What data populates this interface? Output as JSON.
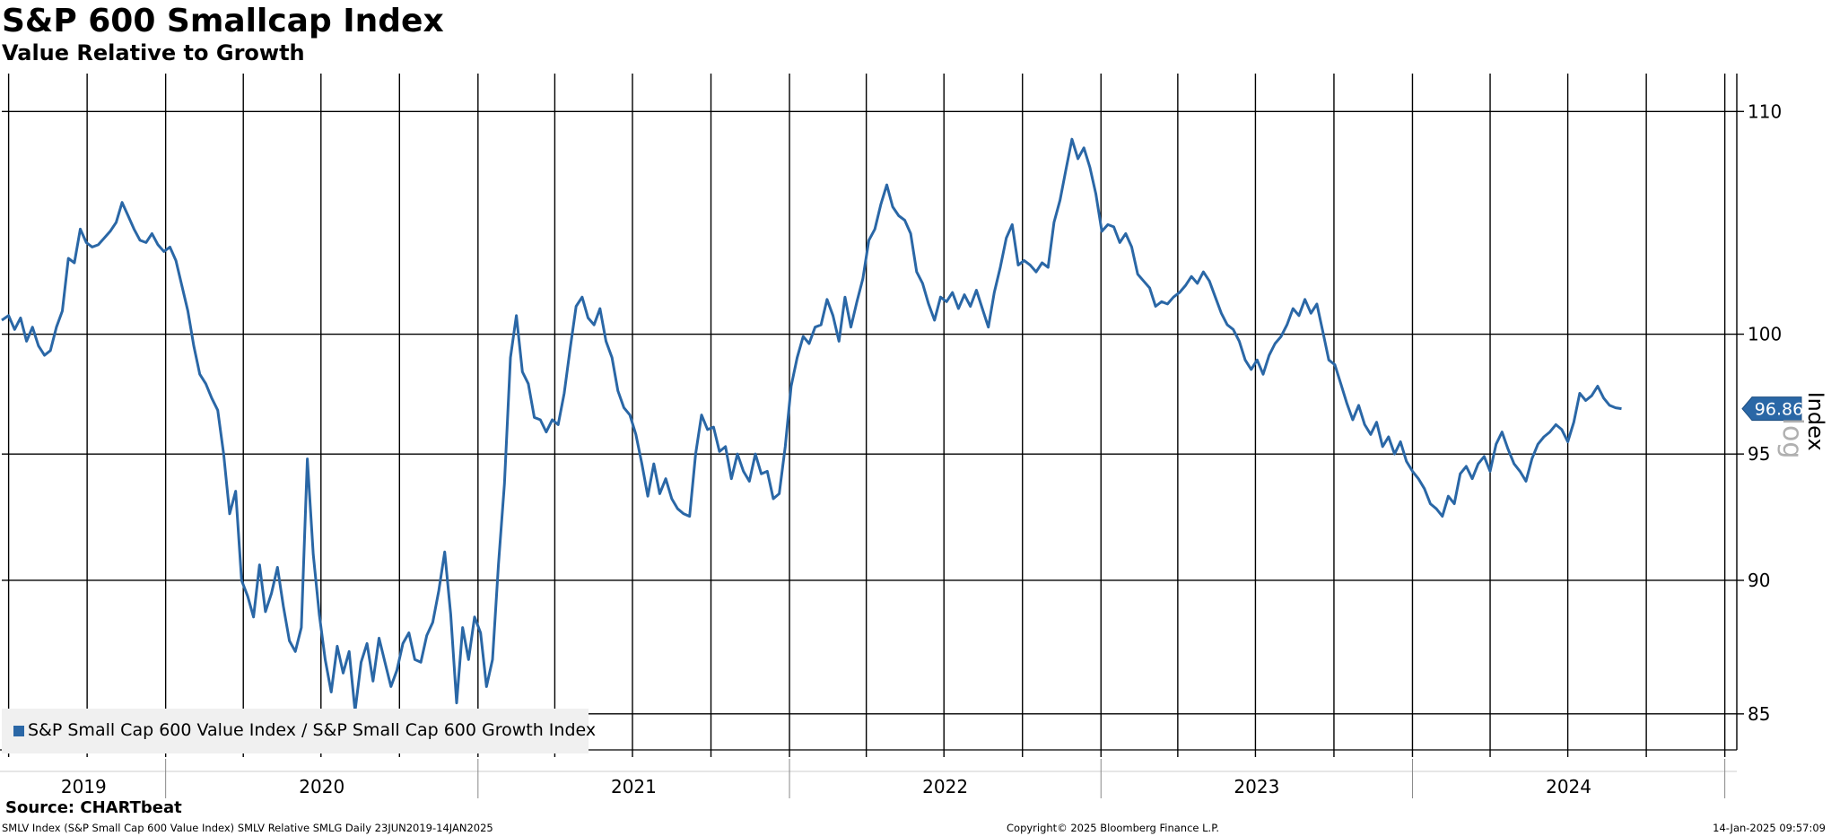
{
  "header": {
    "title": "S&P 600 Smallcap Index",
    "subtitle": "Value Relative to Growth"
  },
  "footer": {
    "source": "Source: CHARTbeat",
    "description": "SMLV Index (S&P Small Cap 600 Value Index) SMLV Relative SMLG  Daily 23JUN2019-14JAN2025",
    "copyright": "Copyright© 2025 Bloomberg Finance L.P.",
    "timestamp": "14-Jan-2025 09:57:09"
  },
  "colors": {
    "series": "#2a67a6",
    "grid": "#000000",
    "legend_background": "#f0f0f0"
  },
  "chart_data": {
    "type": "line",
    "title": "S&P 600 Smallcap Index",
    "subtitle": "Value Relative to Growth",
    "ylabel": "Index",
    "log_scale": true,
    "log_watermark": "log",
    "ylim": [
      83.7,
      111.8
    ],
    "yticks": [
      85,
      90,
      95,
      100,
      110
    ],
    "xlim": [
      "2019-06-23",
      "2025-01-14"
    ],
    "x_year_labels": [
      "2019",
      "2020",
      "2021",
      "2022",
      "2023",
      "2024"
    ],
    "grid": true,
    "legend_position": "bottom-left",
    "last_value_label": "96.86",
    "series": [
      {
        "name": "S&P Small Cap 600 Value Index / S&P Small Cap 600 Growth Index",
        "points": [
          [
            "2019-06-23",
            100.6
          ],
          [
            "2019-07-01",
            100.8
          ],
          [
            "2019-07-08",
            100.2
          ],
          [
            "2019-07-15",
            100.7
          ],
          [
            "2019-07-22",
            99.7
          ],
          [
            "2019-07-29",
            100.3
          ],
          [
            "2019-08-05",
            99.5
          ],
          [
            "2019-08-12",
            99.1
          ],
          [
            "2019-08-19",
            99.3
          ],
          [
            "2019-08-26",
            100.3
          ],
          [
            "2019-09-02",
            101.0
          ],
          [
            "2019-09-09",
            103.3
          ],
          [
            "2019-09-16",
            103.1
          ],
          [
            "2019-09-23",
            104.6
          ],
          [
            "2019-09-30",
            104.0
          ],
          [
            "2019-10-07",
            103.8
          ],
          [
            "2019-10-14",
            103.9
          ],
          [
            "2019-10-21",
            104.2
          ],
          [
            "2019-10-28",
            104.5
          ],
          [
            "2019-11-04",
            104.9
          ],
          [
            "2019-11-11",
            105.8
          ],
          [
            "2019-11-18",
            105.2
          ],
          [
            "2019-11-25",
            104.6
          ],
          [
            "2019-12-02",
            104.1
          ],
          [
            "2019-12-09",
            104.0
          ],
          [
            "2019-12-16",
            104.4
          ],
          [
            "2019-12-23",
            103.9
          ],
          [
            "2019-12-30",
            103.6
          ],
          [
            "2020-01-06",
            103.8
          ],
          [
            "2020-01-13",
            103.2
          ],
          [
            "2020-01-20",
            102.1
          ],
          [
            "2020-01-27",
            101.0
          ],
          [
            "2020-02-03",
            99.5
          ],
          [
            "2020-02-10",
            98.3
          ],
          [
            "2020-02-17",
            97.9
          ],
          [
            "2020-02-24",
            97.3
          ],
          [
            "2020-03-02",
            96.8
          ],
          [
            "2020-03-09",
            95.0
          ],
          [
            "2020-03-16",
            92.6
          ],
          [
            "2020-03-23",
            93.5
          ],
          [
            "2020-03-30",
            90.0
          ],
          [
            "2020-04-06",
            89.4
          ],
          [
            "2020-04-13",
            88.6
          ],
          [
            "2020-04-20",
            90.6
          ],
          [
            "2020-04-27",
            88.8
          ],
          [
            "2020-05-04",
            89.5
          ],
          [
            "2020-05-11",
            90.5
          ],
          [
            "2020-05-18",
            89.0
          ],
          [
            "2020-05-25",
            87.7
          ],
          [
            "2020-06-01",
            87.3
          ],
          [
            "2020-06-08",
            88.2
          ],
          [
            "2020-06-15",
            94.8
          ],
          [
            "2020-06-22",
            91.0
          ],
          [
            "2020-06-29",
            88.7
          ],
          [
            "2020-07-06",
            87.0
          ],
          [
            "2020-07-13",
            85.8
          ],
          [
            "2020-07-20",
            87.5
          ],
          [
            "2020-07-27",
            86.5
          ],
          [
            "2020-08-03",
            87.3
          ],
          [
            "2020-08-10",
            85.1
          ],
          [
            "2020-08-17",
            86.9
          ],
          [
            "2020-08-24",
            87.6
          ],
          [
            "2020-08-31",
            86.2
          ],
          [
            "2020-09-07",
            87.8
          ],
          [
            "2020-09-14",
            86.9
          ],
          [
            "2020-09-21",
            86.0
          ],
          [
            "2020-09-28",
            86.6
          ],
          [
            "2020-10-05",
            87.6
          ],
          [
            "2020-10-12",
            88.0
          ],
          [
            "2020-10-19",
            87.0
          ],
          [
            "2020-10-26",
            86.9
          ],
          [
            "2020-11-02",
            87.9
          ],
          [
            "2020-11-09",
            88.4
          ],
          [
            "2020-11-16",
            89.6
          ],
          [
            "2020-11-23",
            91.1
          ],
          [
            "2020-11-30",
            88.7
          ],
          [
            "2020-12-07",
            85.4
          ],
          [
            "2020-12-14",
            88.2
          ],
          [
            "2020-12-21",
            87.0
          ],
          [
            "2020-12-28",
            88.6
          ],
          [
            "2021-01-04",
            88.0
          ],
          [
            "2021-01-11",
            86.0
          ],
          [
            "2021-01-18",
            87.0
          ],
          [
            "2021-01-25",
            90.6
          ],
          [
            "2021-02-01",
            93.8
          ],
          [
            "2021-02-08",
            99.0
          ],
          [
            "2021-02-15",
            100.8
          ],
          [
            "2021-02-22",
            98.4
          ],
          [
            "2021-03-01",
            97.9
          ],
          [
            "2021-03-08",
            96.5
          ],
          [
            "2021-03-15",
            96.4
          ],
          [
            "2021-03-22",
            95.9
          ],
          [
            "2021-03-29",
            96.4
          ],
          [
            "2021-04-05",
            96.2
          ],
          [
            "2021-04-12",
            97.5
          ],
          [
            "2021-04-19",
            99.4
          ],
          [
            "2021-04-26",
            101.2
          ],
          [
            "2021-05-03",
            101.6
          ],
          [
            "2021-05-10",
            100.7
          ],
          [
            "2021-05-17",
            100.4
          ],
          [
            "2021-05-24",
            101.1
          ],
          [
            "2021-05-31",
            99.7
          ],
          [
            "2021-06-07",
            99.0
          ],
          [
            "2021-06-14",
            97.6
          ],
          [
            "2021-06-21",
            96.9
          ],
          [
            "2021-06-28",
            96.6
          ],
          [
            "2021-07-05",
            95.8
          ],
          [
            "2021-07-12",
            94.6
          ],
          [
            "2021-07-19",
            93.3
          ],
          [
            "2021-07-26",
            94.6
          ],
          [
            "2021-08-02",
            93.4
          ],
          [
            "2021-08-09",
            94.0
          ],
          [
            "2021-08-16",
            93.2
          ],
          [
            "2021-08-23",
            92.8
          ],
          [
            "2021-08-30",
            92.6
          ],
          [
            "2021-09-06",
            92.5
          ],
          [
            "2021-09-13",
            95.0
          ],
          [
            "2021-09-20",
            96.6
          ],
          [
            "2021-09-27",
            96.0
          ],
          [
            "2021-10-04",
            96.1
          ],
          [
            "2021-10-11",
            95.1
          ],
          [
            "2021-10-18",
            95.3
          ],
          [
            "2021-10-25",
            94.0
          ],
          [
            "2021-11-01",
            95.0
          ],
          [
            "2021-11-08",
            94.3
          ],
          [
            "2021-11-15",
            93.9
          ],
          [
            "2021-11-22",
            95.0
          ],
          [
            "2021-11-29",
            94.2
          ],
          [
            "2021-12-06",
            94.3
          ],
          [
            "2021-12-13",
            93.2
          ],
          [
            "2021-12-20",
            93.4
          ],
          [
            "2021-12-27",
            95.3
          ],
          [
            "2022-01-03",
            97.8
          ],
          [
            "2022-01-10",
            99.0
          ],
          [
            "2022-01-17",
            99.9
          ],
          [
            "2022-01-24",
            99.6
          ],
          [
            "2022-01-31",
            100.3
          ],
          [
            "2022-02-07",
            100.4
          ],
          [
            "2022-02-14",
            101.5
          ],
          [
            "2022-02-21",
            100.8
          ],
          [
            "2022-02-28",
            99.7
          ],
          [
            "2022-03-07",
            101.6
          ],
          [
            "2022-03-14",
            100.3
          ],
          [
            "2022-03-21",
            101.4
          ],
          [
            "2022-03-28",
            102.4
          ],
          [
            "2022-04-04",
            104.1
          ],
          [
            "2022-04-11",
            104.6
          ],
          [
            "2022-04-18",
            105.7
          ],
          [
            "2022-04-25",
            106.6
          ],
          [
            "2022-05-02",
            105.6
          ],
          [
            "2022-05-09",
            105.2
          ],
          [
            "2022-05-16",
            105.0
          ],
          [
            "2022-05-23",
            104.4
          ],
          [
            "2022-05-30",
            102.7
          ],
          [
            "2022-06-06",
            102.2
          ],
          [
            "2022-06-13",
            101.3
          ],
          [
            "2022-06-20",
            100.6
          ],
          [
            "2022-06-27",
            101.6
          ],
          [
            "2022-07-04",
            101.4
          ],
          [
            "2022-07-11",
            101.8
          ],
          [
            "2022-07-18",
            101.1
          ],
          [
            "2022-07-25",
            101.7
          ],
          [
            "2022-08-01",
            101.2
          ],
          [
            "2022-08-08",
            101.9
          ],
          [
            "2022-08-15",
            101.1
          ],
          [
            "2022-08-22",
            100.3
          ],
          [
            "2022-08-29",
            101.8
          ],
          [
            "2022-09-05",
            102.9
          ],
          [
            "2022-09-12",
            104.2
          ],
          [
            "2022-09-19",
            104.8
          ],
          [
            "2022-09-26",
            103.0
          ],
          [
            "2022-10-03",
            103.2
          ],
          [
            "2022-10-10",
            103.0
          ],
          [
            "2022-10-17",
            102.7
          ],
          [
            "2022-10-24",
            103.1
          ],
          [
            "2022-10-31",
            102.9
          ],
          [
            "2022-11-07",
            104.9
          ],
          [
            "2022-11-14",
            105.9
          ],
          [
            "2022-11-21",
            107.3
          ],
          [
            "2022-11-28",
            108.7
          ],
          [
            "2022-12-05",
            107.8
          ],
          [
            "2022-12-12",
            108.3
          ],
          [
            "2022-12-19",
            107.4
          ],
          [
            "2022-12-26",
            106.2
          ],
          [
            "2023-01-02",
            104.5
          ],
          [
            "2023-01-09",
            104.8
          ],
          [
            "2023-01-16",
            104.7
          ],
          [
            "2023-01-23",
            104.0
          ],
          [
            "2023-01-30",
            104.4
          ],
          [
            "2023-02-06",
            103.8
          ],
          [
            "2023-02-13",
            102.6
          ],
          [
            "2023-02-20",
            102.3
          ],
          [
            "2023-02-27",
            102.0
          ],
          [
            "2023-03-06",
            101.2
          ],
          [
            "2023-03-13",
            101.4
          ],
          [
            "2023-03-20",
            101.3
          ],
          [
            "2023-03-27",
            101.6
          ],
          [
            "2023-04-03",
            101.8
          ],
          [
            "2023-04-10",
            102.1
          ],
          [
            "2023-04-17",
            102.5
          ],
          [
            "2023-04-24",
            102.2
          ],
          [
            "2023-05-01",
            102.7
          ],
          [
            "2023-05-08",
            102.3
          ],
          [
            "2023-05-15",
            101.6
          ],
          [
            "2023-05-22",
            100.9
          ],
          [
            "2023-05-29",
            100.4
          ],
          [
            "2023-06-05",
            100.2
          ],
          [
            "2023-06-12",
            99.7
          ],
          [
            "2023-06-19",
            98.9
          ],
          [
            "2023-06-26",
            98.5
          ],
          [
            "2023-07-03",
            98.9
          ],
          [
            "2023-07-10",
            98.3
          ],
          [
            "2023-07-17",
            99.1
          ],
          [
            "2023-07-24",
            99.6
          ],
          [
            "2023-07-31",
            99.9
          ],
          [
            "2023-08-07",
            100.4
          ],
          [
            "2023-08-14",
            101.1
          ],
          [
            "2023-08-21",
            100.8
          ],
          [
            "2023-08-28",
            101.5
          ],
          [
            "2023-09-04",
            100.9
          ],
          [
            "2023-09-11",
            101.3
          ],
          [
            "2023-09-18",
            100.1
          ],
          [
            "2023-09-25",
            98.9
          ],
          [
            "2023-10-02",
            98.7
          ],
          [
            "2023-10-09",
            97.9
          ],
          [
            "2023-10-16",
            97.1
          ],
          [
            "2023-10-23",
            96.4
          ],
          [
            "2023-10-30",
            97.0
          ],
          [
            "2023-11-06",
            96.2
          ],
          [
            "2023-11-13",
            95.8
          ],
          [
            "2023-11-20",
            96.3
          ],
          [
            "2023-11-27",
            95.3
          ],
          [
            "2023-12-04",
            95.7
          ],
          [
            "2023-12-11",
            95.0
          ],
          [
            "2023-12-18",
            95.5
          ],
          [
            "2023-12-25",
            94.7
          ],
          [
            "2024-01-01",
            94.3
          ],
          [
            "2024-01-08",
            94.0
          ],
          [
            "2024-01-15",
            93.6
          ],
          [
            "2024-01-22",
            93.0
          ],
          [
            "2024-01-29",
            92.8
          ],
          [
            "2024-02-05",
            92.5
          ],
          [
            "2024-02-12",
            93.3
          ],
          [
            "2024-02-19",
            93.0
          ],
          [
            "2024-02-26",
            94.2
          ],
          [
            "2024-03-04",
            94.5
          ],
          [
            "2024-03-11",
            94.0
          ],
          [
            "2024-03-18",
            94.6
          ],
          [
            "2024-03-25",
            94.9
          ],
          [
            "2024-04-01",
            94.3
          ],
          [
            "2024-04-08",
            95.4
          ],
          [
            "2024-04-15",
            95.9
          ],
          [
            "2024-04-22",
            95.2
          ],
          [
            "2024-04-29",
            94.6
          ],
          [
            "2024-05-06",
            94.3
          ],
          [
            "2024-05-13",
            93.9
          ],
          [
            "2024-05-20",
            94.8
          ],
          [
            "2024-05-27",
            95.4
          ],
          [
            "2024-06-03",
            95.7
          ],
          [
            "2024-06-10",
            95.9
          ],
          [
            "2024-06-17",
            96.2
          ],
          [
            "2024-06-24",
            96.0
          ],
          [
            "2024-07-01",
            95.5
          ],
          [
            "2024-07-08",
            96.3
          ],
          [
            "2024-07-15",
            97.5
          ],
          [
            "2024-07-22",
            97.2
          ],
          [
            "2024-07-29",
            97.4
          ],
          [
            "2024-08-05",
            97.8
          ],
          [
            "2024-08-12",
            97.3
          ],
          [
            "2024-08-19",
            97.0
          ],
          [
            "2024-08-26",
            96.9
          ],
          [
            "2024-09-02",
            96.86
          ]
        ]
      }
    ]
  }
}
